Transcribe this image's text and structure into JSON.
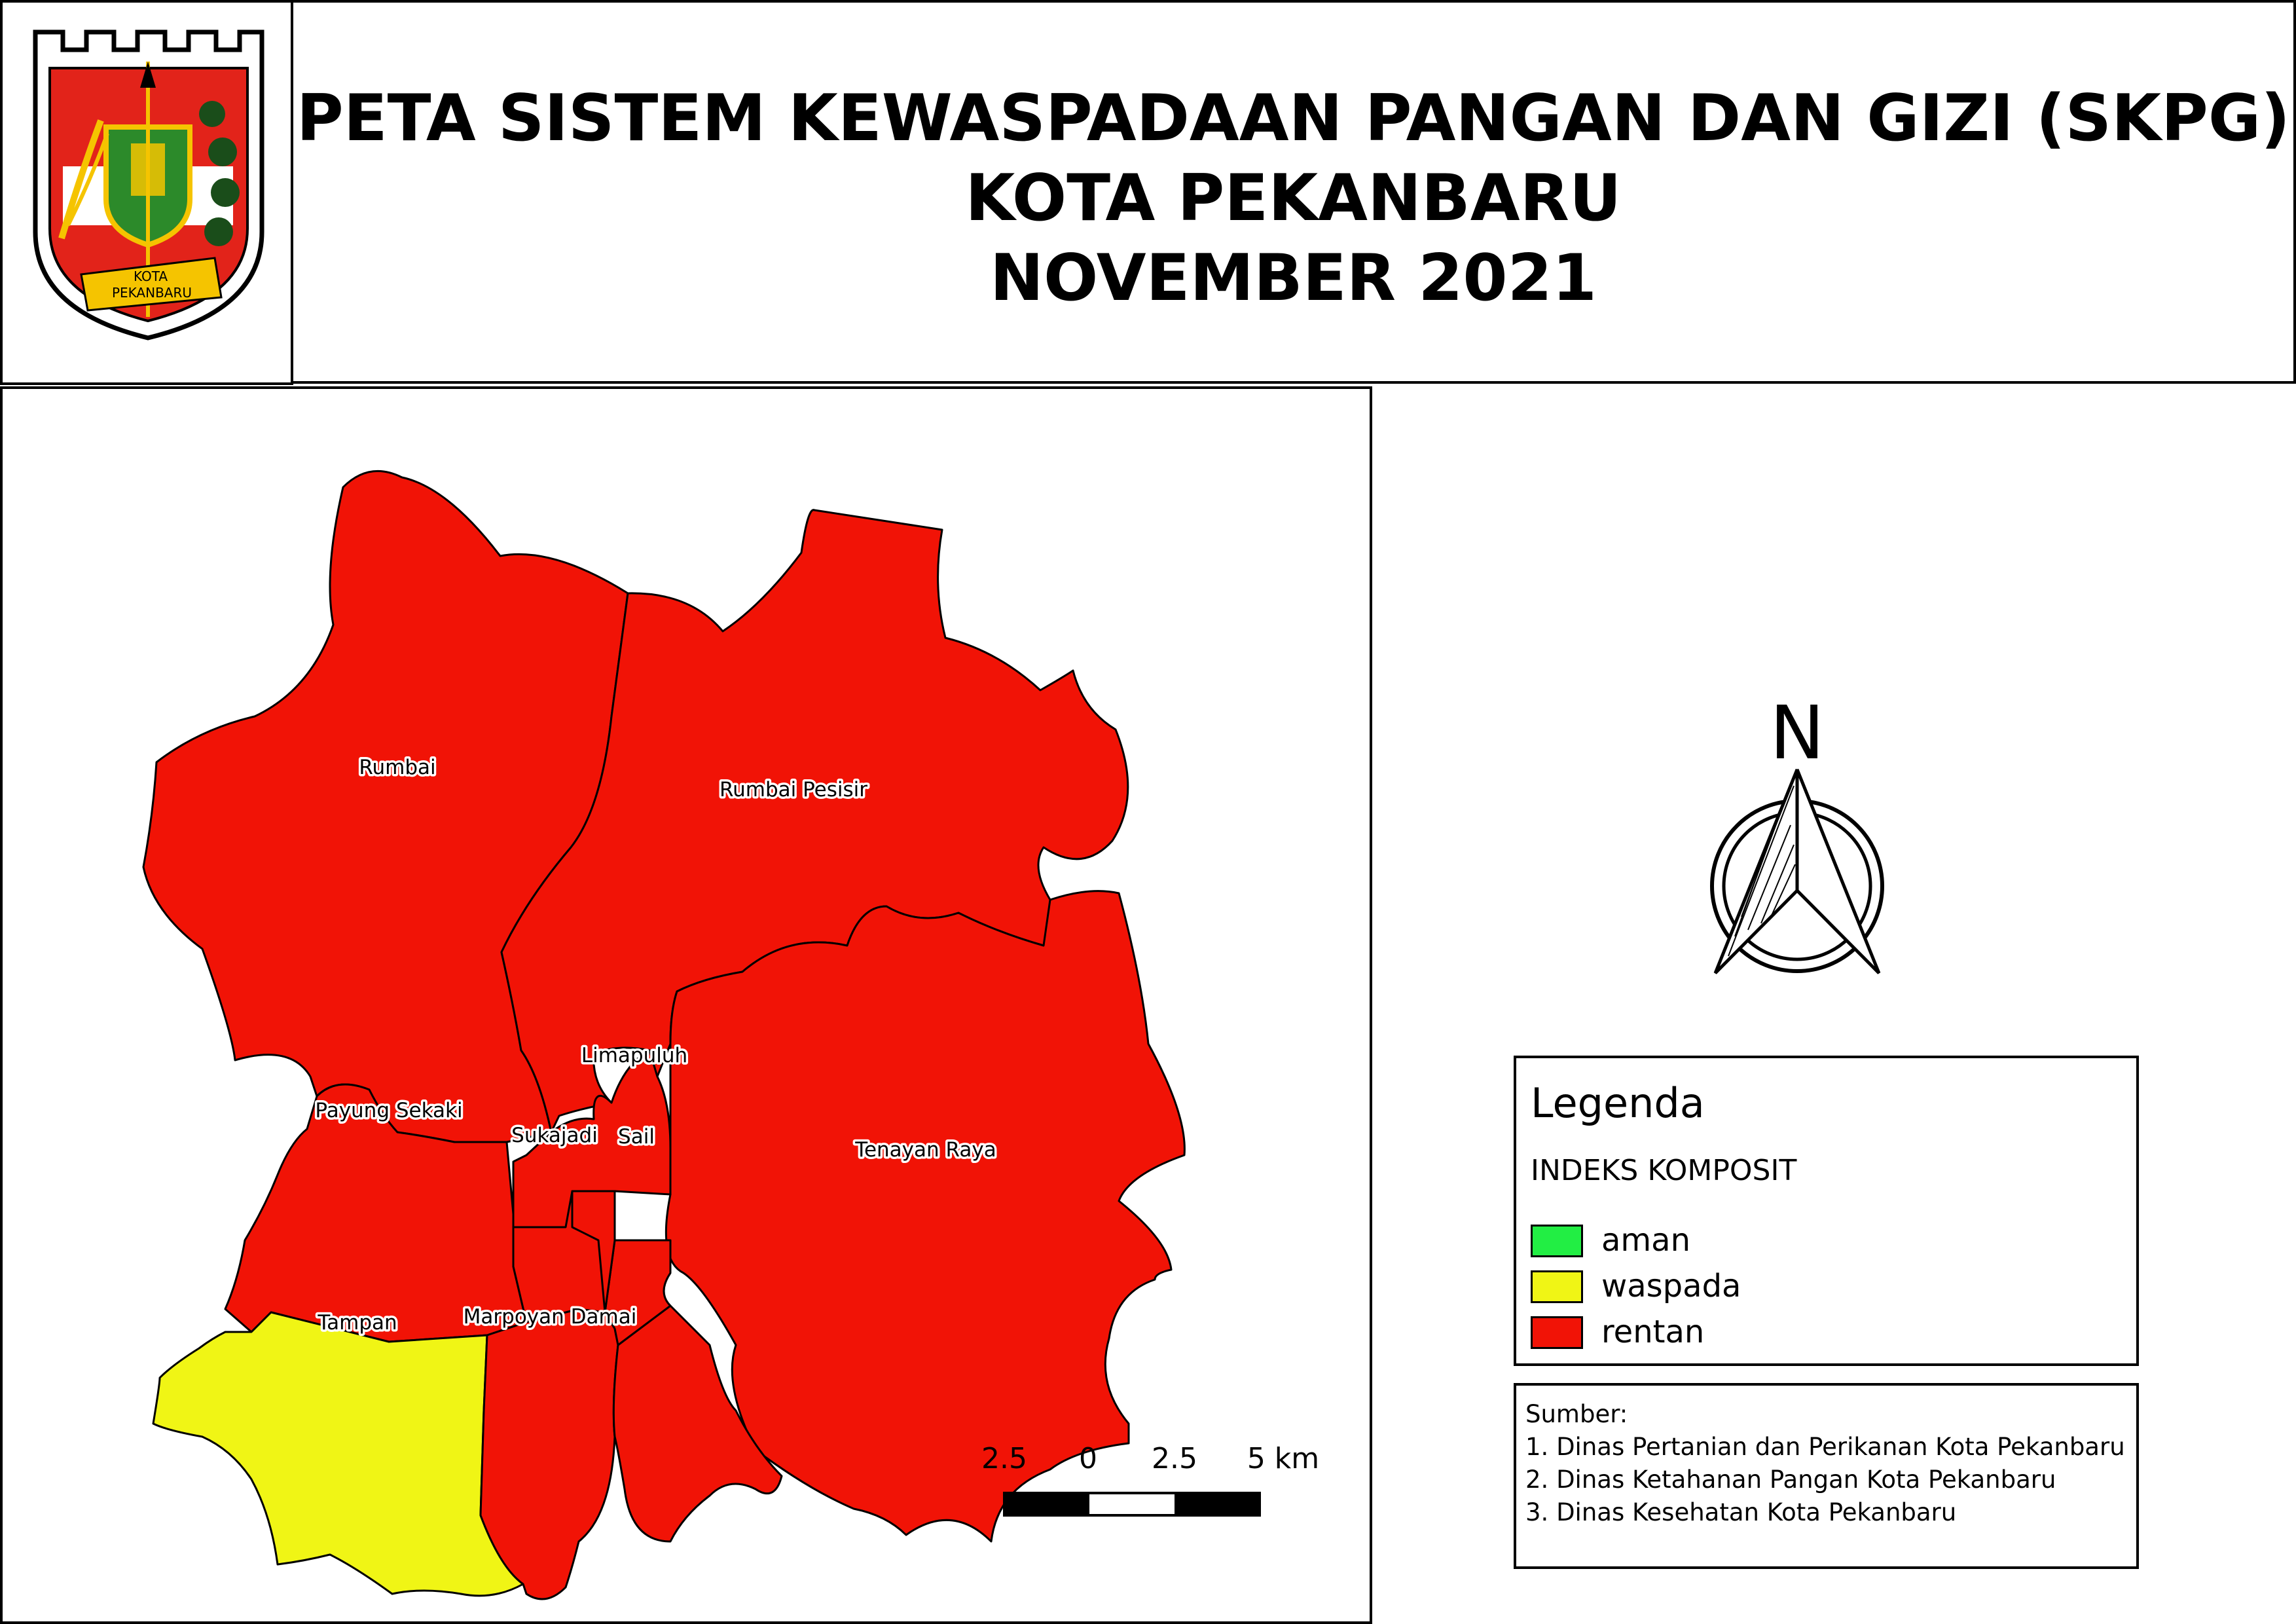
{
  "header": {
    "title_line1": "PETA SISTEM KEWASPADAAN PANGAN DAN GIZI (SKPG)",
    "title_line2": "KOTA PEKANBARU",
    "title_line3": "NOVEMBER 2021"
  },
  "logo": {
    "banner_text_line1": "KOTA",
    "banner_text_line2": "PEKANBARU"
  },
  "map": {
    "districts": {
      "rumbai": "Rumbai",
      "rumbai_pesisir": "Rumbai Pesisir",
      "limapuluh": "Limapuluh",
      "payung_sekaki": "Payung Sekaki",
      "sukajadi": "Sukajadi",
      "sail": "Sail",
      "tenayan_raya": "Tenayan Raya",
      "tampan": "Tampan",
      "marpoyan_damai": "Marpoyan Damai"
    },
    "district_category": {
      "rumbai": "rentan",
      "rumbai_pesisir": "rentan",
      "limapuluh": "rentan",
      "payung_sekaki": "rentan",
      "sukajadi": "rentan",
      "sail": "rentan",
      "tenayan_raya": "rentan",
      "tampan": "waspada",
      "marpoyan_damai": "rentan"
    },
    "scale_bar": {
      "labels": [
        "2.5",
        "0",
        "2.5",
        "5 km"
      ]
    },
    "north_arrow": {
      "label": "N",
      "icon": "north-arrow-icon"
    }
  },
  "legend": {
    "title": "Legenda",
    "subtitle": "INDEKS KOMPOSIT",
    "items": [
      {
        "label": "aman",
        "color": "#22ee44"
      },
      {
        "label": "waspada",
        "color": "#f0f515"
      },
      {
        "label": "rentan",
        "color": "#f11306"
      }
    ]
  },
  "sources": {
    "heading": "Sumber:",
    "items": [
      "1. Dinas Pertanian dan Perikanan Kota Pekanbaru",
      "2. Dinas Ketahanan Pangan Kota Pekanbaru",
      "3. Dinas Kesehatan Kota Pekanbaru"
    ]
  }
}
